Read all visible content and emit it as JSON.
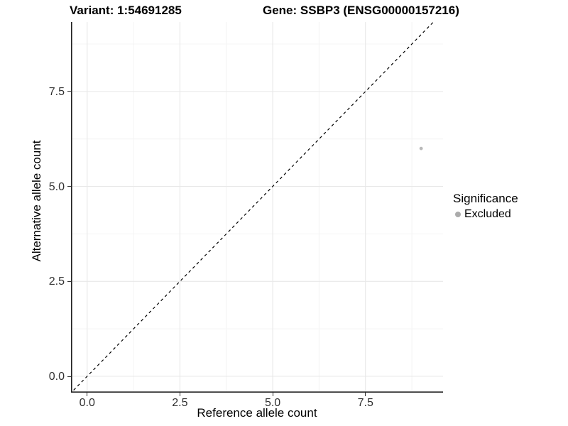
{
  "titles": {
    "variant": "Variant: 1:54691285",
    "gene": "Gene: SSBP3 (ENSG00000157216)"
  },
  "chart_data": {
    "type": "scatter",
    "xlabel": "Reference allele count",
    "ylabel": "Alternative allele count",
    "xlim": [
      -0.435,
      9.59
    ],
    "ylim": [
      -0.43,
      9.33
    ],
    "x_ticks": [
      {
        "v": 0.0,
        "label": "0.0"
      },
      {
        "v": 2.5,
        "label": "2.5"
      },
      {
        "v": 5.0,
        "label": "5.0"
      },
      {
        "v": 7.5,
        "label": "7.5"
      }
    ],
    "y_ticks": [
      {
        "v": 0.0,
        "label": "0.0"
      },
      {
        "v": 2.5,
        "label": "2.5"
      },
      {
        "v": 5.0,
        "label": "5.0"
      },
      {
        "v": 7.5,
        "label": "7.5"
      }
    ],
    "x_minor": [
      1.25,
      3.75,
      6.25,
      8.75
    ],
    "y_minor": [
      1.25,
      3.75,
      6.25,
      8.75
    ],
    "grid": {
      "on": true,
      "major_color": "#e8e8e8",
      "minor_color": "#f4f4f4"
    },
    "axis_line_color": "#222222",
    "abline": {
      "slope": 1,
      "intercept": 0,
      "color": "#000000",
      "dash": "4,4",
      "style": "dashed"
    },
    "series": [
      {
        "name": "Excluded",
        "color": "#b9b9b9",
        "points": [
          {
            "x": 9,
            "y": 6
          }
        ]
      }
    ],
    "legend": {
      "position": "right",
      "title": "Significance",
      "entries": [
        {
          "label": "Excluded",
          "color": "#ababab"
        }
      ]
    }
  }
}
